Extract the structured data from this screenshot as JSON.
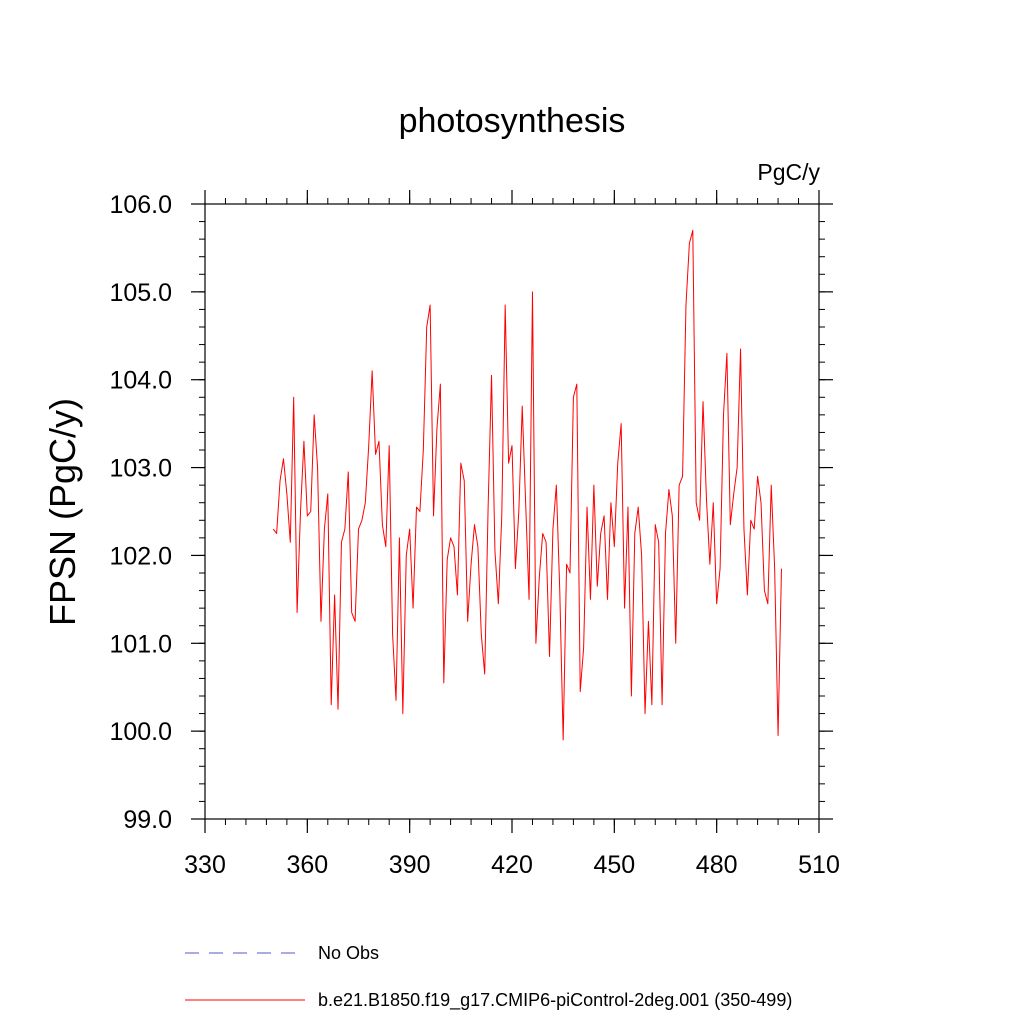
{
  "chart_data": {
    "type": "line",
    "title": "photosynthesis",
    "units_label": "PgC/y",
    "xlabel": "",
    "ylabel": "FPSN  (PgC/y)",
    "xlim": [
      330,
      510
    ],
    "ylim": [
      99.0,
      106.0
    ],
    "x_ticks": [
      330,
      360,
      390,
      420,
      450,
      480,
      510
    ],
    "x_tick_labels": [
      "330",
      "360",
      "390",
      "420",
      "450",
      "480",
      "510"
    ],
    "y_ticks": [
      99.0,
      100.0,
      101.0,
      102.0,
      103.0,
      104.0,
      105.0,
      106.0
    ],
    "y_tick_labels": [
      "99.0",
      "100.0",
      "101.0",
      "102.0",
      "103.0",
      "104.0",
      "105.0",
      "106.0"
    ],
    "x_minor_step": 6,
    "y_minor_step": 0.2,
    "grid": false,
    "legend_position": "bottom",
    "series": [
      {
        "name": "No Obs",
        "color": "#5555cc",
        "style": "dashed",
        "x_start": 350,
        "values": []
      },
      {
        "name": "b.e21.B1850.f19_g17.CMIP6-piControl-2deg.001 (350-499)",
        "color": "#ff0000",
        "style": "solid",
        "x_start": 350,
        "values": [
          102.3,
          102.25,
          102.85,
          103.1,
          102.7,
          102.15,
          103.8,
          101.35,
          102.5,
          103.3,
          102.45,
          102.5,
          103.6,
          103.0,
          101.25,
          102.3,
          102.7,
          100.3,
          101.55,
          100.25,
          102.15,
          102.3,
          102.95,
          101.35,
          101.25,
          102.3,
          102.4,
          102.6,
          103.25,
          104.1,
          103.15,
          103.3,
          102.35,
          102.1,
          103.25,
          101.1,
          100.35,
          102.2,
          100.2,
          102.0,
          102.3,
          101.4,
          102.55,
          102.5,
          103.2,
          104.6,
          104.85,
          102.45,
          103.45,
          103.95,
          100.55,
          101.95,
          102.2,
          102.1,
          101.55,
          103.05,
          102.85,
          101.25,
          101.9,
          102.35,
          102.1,
          101.1,
          100.65,
          102.55,
          104.05,
          102.05,
          101.45,
          102.45,
          104.85,
          103.05,
          103.25,
          101.85,
          102.5,
          103.7,
          102.6,
          101.5,
          105.0,
          101.0,
          101.75,
          102.25,
          102.15,
          100.85,
          102.3,
          102.8,
          101.6,
          99.9,
          101.9,
          101.8,
          103.8,
          103.95,
          100.45,
          100.95,
          102.55,
          101.5,
          102.8,
          101.65,
          102.25,
          102.45,
          101.5,
          102.6,
          102.1,
          103.05,
          103.5,
          101.4,
          102.55,
          100.4,
          102.25,
          102.55,
          102.0,
          100.2,
          101.25,
          100.3,
          102.35,
          102.15,
          100.3,
          102.25,
          102.75,
          102.45,
          101.0,
          102.8,
          102.9,
          104.85,
          105.55,
          105.7,
          102.6,
          102.4,
          103.75,
          102.65,
          101.9,
          102.6,
          101.45,
          101.85,
          103.6,
          104.3,
          102.35,
          102.7,
          103.0,
          104.35,
          102.3,
          101.55,
          102.4,
          102.3,
          102.9,
          102.6,
          101.6,
          101.45,
          102.8,
          101.85,
          99.95,
          101.85
        ]
      }
    ]
  }
}
